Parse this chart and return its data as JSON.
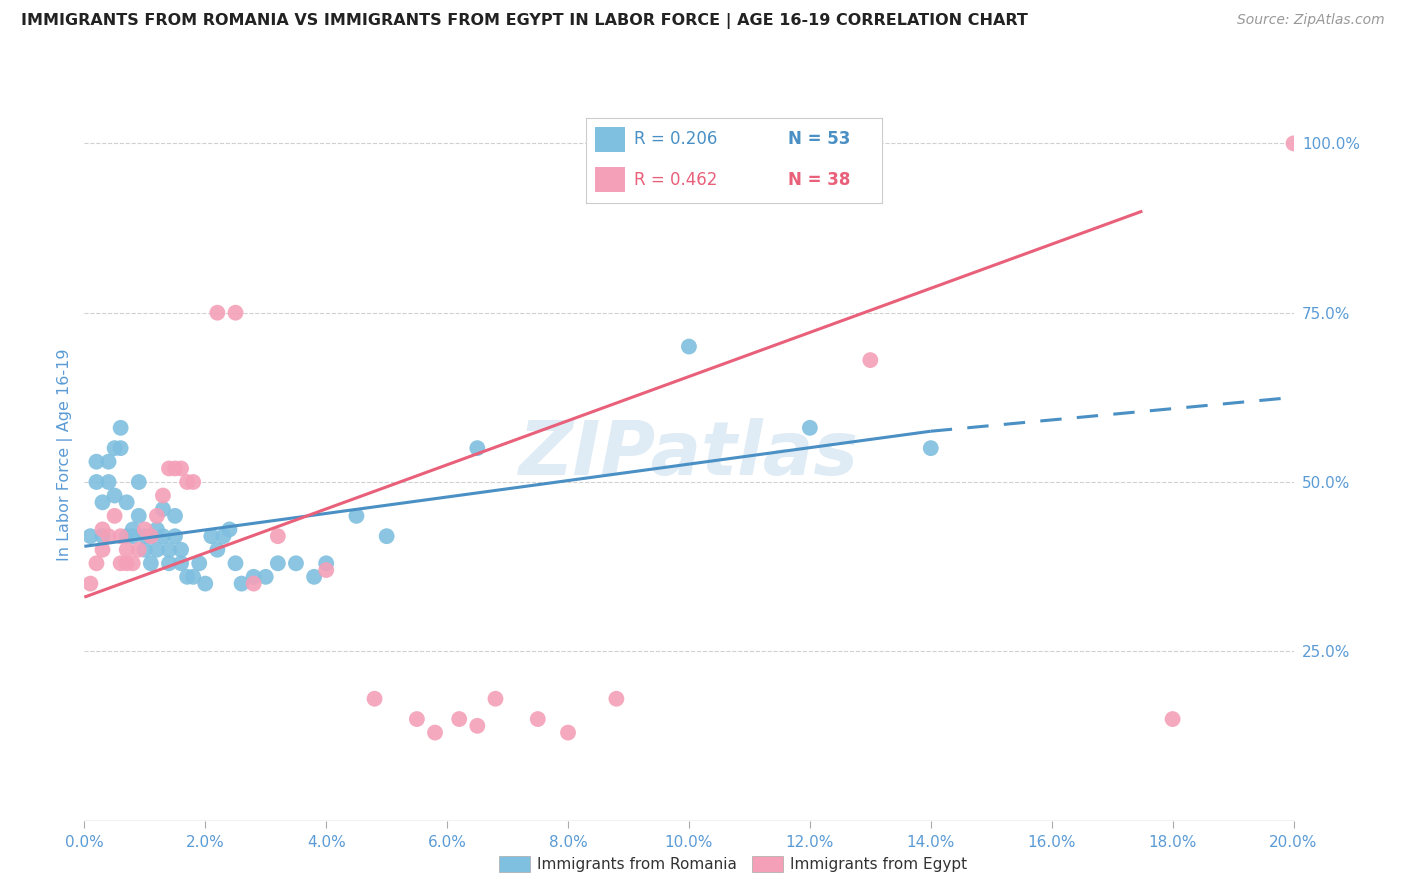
{
  "title": "IMMIGRANTS FROM ROMANIA VS IMMIGRANTS FROM EGYPT IN LABOR FORCE | AGE 16-19 CORRELATION CHART",
  "source": "Source: ZipAtlas.com",
  "ylabel": "In Labor Force | Age 16-19",
  "xlim": [
    0.0,
    0.2
  ],
  "ylim": [
    0.0,
    1.08
  ],
  "xticks": [
    0.0,
    0.02,
    0.04,
    0.06,
    0.08,
    0.1,
    0.12,
    0.14,
    0.16,
    0.18,
    0.2
  ],
  "yticks_right": [
    0.25,
    0.5,
    0.75,
    1.0
  ],
  "ytick_right_labels": [
    "25.0%",
    "50.0%",
    "75.0%",
    "100.0%"
  ],
  "watermark": "ZIPatlas",
  "legend_romania": "Immigrants from Romania",
  "legend_egypt": "Immigrants from Egypt",
  "R_romania": "R = 0.206",
  "N_romania": "N = 53",
  "R_egypt": "R = 0.462",
  "N_egypt": "N = 38",
  "color_romania": "#7fbfdf",
  "color_egypt": "#f4a0b8",
  "color_blue": "#4a90c4",
  "color_pink": "#e8607a",
  "color_axis": "#5b9bd5",
  "romania_x": [
    0.001,
    0.002,
    0.002,
    0.003,
    0.003,
    0.004,
    0.004,
    0.005,
    0.005,
    0.006,
    0.006,
    0.007,
    0.007,
    0.008,
    0.008,
    0.009,
    0.009,
    0.01,
    0.01,
    0.011,
    0.011,
    0.012,
    0.012,
    0.013,
    0.013,
    0.014,
    0.014,
    0.015,
    0.015,
    0.016,
    0.016,
    0.017,
    0.018,
    0.019,
    0.02,
    0.021,
    0.022,
    0.023,
    0.024,
    0.025,
    0.026,
    0.028,
    0.03,
    0.032,
    0.035,
    0.038,
    0.04,
    0.045,
    0.05,
    0.065,
    0.1,
    0.12,
    0.14
  ],
  "romania_y": [
    0.42,
    0.5,
    0.53,
    0.42,
    0.47,
    0.5,
    0.53,
    0.55,
    0.48,
    0.55,
    0.58,
    0.42,
    0.47,
    0.42,
    0.43,
    0.45,
    0.5,
    0.4,
    0.42,
    0.38,
    0.42,
    0.4,
    0.43,
    0.42,
    0.46,
    0.4,
    0.38,
    0.42,
    0.45,
    0.4,
    0.38,
    0.36,
    0.36,
    0.38,
    0.35,
    0.42,
    0.4,
    0.42,
    0.43,
    0.38,
    0.35,
    0.36,
    0.36,
    0.38,
    0.38,
    0.36,
    0.38,
    0.45,
    0.42,
    0.55,
    0.7,
    0.58,
    0.55
  ],
  "egypt_x": [
    0.001,
    0.002,
    0.003,
    0.003,
    0.004,
    0.005,
    0.006,
    0.006,
    0.007,
    0.007,
    0.008,
    0.009,
    0.01,
    0.011,
    0.012,
    0.013,
    0.014,
    0.015,
    0.016,
    0.017,
    0.018,
    0.022,
    0.025,
    0.028,
    0.032,
    0.04,
    0.048,
    0.055,
    0.058,
    0.062,
    0.065,
    0.068,
    0.075,
    0.08,
    0.088,
    0.13,
    0.18,
    0.2
  ],
  "egypt_y": [
    0.35,
    0.38,
    0.4,
    0.43,
    0.42,
    0.45,
    0.38,
    0.42,
    0.4,
    0.38,
    0.38,
    0.4,
    0.43,
    0.42,
    0.45,
    0.48,
    0.52,
    0.52,
    0.52,
    0.5,
    0.5,
    0.75,
    0.75,
    0.35,
    0.42,
    0.37,
    0.18,
    0.15,
    0.13,
    0.15,
    0.14,
    0.18,
    0.15,
    0.13,
    0.18,
    0.68,
    0.15,
    1.0
  ],
  "trend_rom_x0": 0.0,
  "trend_rom_y0": 0.405,
  "trend_rom_x1": 0.14,
  "trend_rom_y1": 0.575,
  "trend_rom_dash_x1": 0.2,
  "trend_rom_dash_y1": 0.625,
  "trend_egy_x0": 0.0,
  "trend_egy_y0": 0.33,
  "trend_egy_x1": 0.175,
  "trend_egy_y1": 0.9
}
